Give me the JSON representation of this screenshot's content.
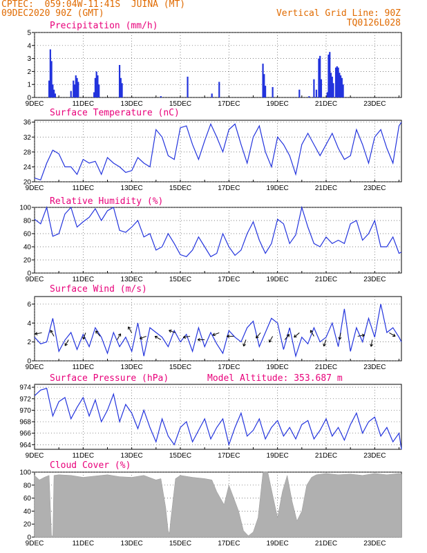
{
  "header": {
    "line1": "CPTEC:  059:04W-11:41S  JUINA (MT)",
    "line2": "09DEC2020 90Z (GMT)",
    "grid_note": "Vertical Grid Line: 90Z",
    "code": "TQ0126L028"
  },
  "colors": {
    "line": "#2233dd",
    "bar": "#2233dd",
    "cloud": "#b0b0b0",
    "title": "#e8007a",
    "header": "#e06a00"
  },
  "x_labels": [
    "9DEC",
    "11DEC",
    "13DEC",
    "15DEC",
    "17DEC",
    "19DEC",
    "21DEC",
    "23DEC"
  ],
  "chart_data": [
    {
      "id": "precip",
      "type": "bar",
      "title": "Precipitation (mm/h)",
      "ylim": [
        0,
        5
      ],
      "yticks": [
        0,
        1,
        2,
        3,
        4,
        5
      ],
      "xlim_days": [
        9,
        24.1
      ],
      "x": [
        9.6,
        9.65,
        9.7,
        9.75,
        9.8,
        9.85,
        10.5,
        10.6,
        10.65,
        10.7,
        10.75,
        10.8,
        11.45,
        11.5,
        11.55,
        11.6,
        11.65,
        12.5,
        12.55,
        12.6,
        14.2,
        15.3,
        16.3,
        16.6,
        18.4,
        18.45,
        18.5,
        18.8,
        19.9,
        20.3,
        20.5,
        20.6,
        20.7,
        20.75,
        20.8,
        21.05,
        21.1,
        21.15,
        21.2,
        21.25,
        21.3,
        21.4,
        21.45,
        21.5,
        21.55,
        21.6,
        21.65,
        21.7
      ],
      "values": [
        1.3,
        3.7,
        2.8,
        1.0,
        0.6,
        0.3,
        0.5,
        1.3,
        1.0,
        1.7,
        1.5,
        1.2,
        0.4,
        1.5,
        2.0,
        1.7,
        1.0,
        2.5,
        1.5,
        1.1,
        0.1,
        1.6,
        0.3,
        1.2,
        2.6,
        1.8,
        0.9,
        0.8,
        0.6,
        0.1,
        1.4,
        0.6,
        3.0,
        3.2,
        1.4,
        0.4,
        3.3,
        3.5,
        1.9,
        1.6,
        1.1,
        2.3,
        2.4,
        2.3,
        1.9,
        1.7,
        1.5,
        1.0
      ]
    },
    {
      "id": "temp",
      "type": "line",
      "title": "Surface Temperature (nC)",
      "ylim": [
        20,
        36.5
      ],
      "yticks": [
        20,
        24,
        28,
        32,
        36
      ],
      "xlim_days": [
        9,
        24.1
      ],
      "x": [
        9.0,
        9.25,
        9.5,
        9.75,
        10.0,
        10.25,
        10.5,
        10.75,
        11.0,
        11.25,
        11.5,
        11.75,
        12.0,
        12.25,
        12.5,
        12.75,
        13.0,
        13.25,
        13.5,
        13.75,
        14.0,
        14.25,
        14.5,
        14.75,
        15.0,
        15.25,
        15.5,
        15.75,
        16.0,
        16.25,
        16.5,
        16.75,
        17.0,
        17.25,
        17.5,
        17.75,
        18.0,
        18.25,
        18.5,
        18.75,
        19.0,
        19.25,
        19.5,
        19.75,
        20.0,
        20.25,
        20.5,
        20.75,
        21.0,
        21.25,
        21.5,
        21.75,
        22.0,
        22.25,
        22.5,
        22.75,
        23.0,
        23.25,
        23.5,
        23.75,
        24.0,
        24.1
      ],
      "values": [
        21,
        20.5,
        25,
        28.5,
        27.5,
        24,
        24,
        22,
        26,
        25,
        25.5,
        22,
        26.5,
        25,
        24,
        22.5,
        23,
        26.5,
        25,
        24,
        34,
        32,
        27,
        26,
        34.5,
        35,
        30,
        26,
        31,
        35.5,
        32,
        28,
        34,
        35.5,
        30,
        25,
        32,
        35,
        28,
        24,
        32,
        30,
        27,
        22,
        30,
        33,
        30,
        27,
        30,
        33,
        29,
        26,
        27,
        34,
        30,
        25,
        32,
        34,
        29,
        25,
        35,
        36
      ]
    },
    {
      "id": "rh",
      "type": "line",
      "title": "Relative Humidity (%)",
      "ylim": [
        0,
        100
      ],
      "yticks": [
        0,
        20,
        40,
        60,
        80,
        100
      ],
      "xlim_days": [
        9,
        24.1
      ],
      "x": [
        9.0,
        9.25,
        9.5,
        9.75,
        10.0,
        10.25,
        10.5,
        10.75,
        11.0,
        11.25,
        11.5,
        11.75,
        12.0,
        12.25,
        12.5,
        12.75,
        13.0,
        13.25,
        13.5,
        13.75,
        14.0,
        14.25,
        14.5,
        14.75,
        15.0,
        15.25,
        15.5,
        15.75,
        16.0,
        16.25,
        16.5,
        16.75,
        17.0,
        17.25,
        17.5,
        17.75,
        18.0,
        18.25,
        18.5,
        18.75,
        19.0,
        19.25,
        19.5,
        19.75,
        20.0,
        20.25,
        20.5,
        20.75,
        21.0,
        21.25,
        21.5,
        21.75,
        22.0,
        22.25,
        22.5,
        22.75,
        23.0,
        23.25,
        23.5,
        23.75,
        24.0,
        24.1
      ],
      "values": [
        82,
        75,
        100,
        56,
        60,
        90,
        100,
        70,
        78,
        85,
        98,
        80,
        95,
        100,
        65,
        62,
        70,
        80,
        55,
        60,
        35,
        40,
        60,
        45,
        28,
        25,
        35,
        55,
        40,
        25,
        30,
        60,
        40,
        27,
        35,
        60,
        78,
        50,
        30,
        45,
        82,
        75,
        45,
        58,
        100,
        70,
        45,
        40,
        55,
        45,
        50,
        45,
        75,
        80,
        50,
        60,
        80,
        40,
        40,
        55,
        30,
        32
      ]
    },
    {
      "id": "wind",
      "type": "line",
      "title": "Surface Wind (m/s)",
      "ylim": [
        0,
        6.8
      ],
      "yticks": [
        0,
        2,
        4,
        6
      ],
      "xlim_days": [
        9,
        24.1
      ],
      "x": [
        9.0,
        9.25,
        9.5,
        9.75,
        10.0,
        10.25,
        10.5,
        10.75,
        11.0,
        11.25,
        11.5,
        11.75,
        12.0,
        12.25,
        12.5,
        12.75,
        13.0,
        13.25,
        13.5,
        13.75,
        14.0,
        14.25,
        14.5,
        14.75,
        15.0,
        15.25,
        15.5,
        15.75,
        16.0,
        16.25,
        16.5,
        16.75,
        17.0,
        17.25,
        17.5,
        17.75,
        18.0,
        18.25,
        18.5,
        18.75,
        19.0,
        19.25,
        19.5,
        19.75,
        20.0,
        20.25,
        20.5,
        20.75,
        21.0,
        21.25,
        21.5,
        21.75,
        22.0,
        22.25,
        22.5,
        22.75,
        23.0,
        23.25,
        23.5,
        23.75,
        24.0,
        24.1
      ],
      "values": [
        2.5,
        1.8,
        2.0,
        4.5,
        1.0,
        2.2,
        3.0,
        1.2,
        2.8,
        1.5,
        3.5,
        2.5,
        0.8,
        3.0,
        1.5,
        2.5,
        1.0,
        4.0,
        0.5,
        3.5,
        3.0,
        2.5,
        1.5,
        3.2,
        2.0,
        2.8,
        1.0,
        3.5,
        1.5,
        3.0,
        1.8,
        0.8,
        3.2,
        2.5,
        2.0,
        3.5,
        4.2,
        1.5,
        3.0,
        4.5,
        4.0,
        1.2,
        3.5,
        0.5,
        2.5,
        1.8,
        3.5,
        2.0,
        2.5,
        4.0,
        1.5,
        5.5,
        1.0,
        3.5,
        2.0,
        4.5,
        2.5,
        6.0,
        3.0,
        3.5,
        2.5,
        2.0
      ],
      "arrows": [
        {
          "x": 9.3,
          "dir": 260
        },
        {
          "x": 9.8,
          "dir": 330
        },
        {
          "x": 10.4,
          "dir": 210
        },
        {
          "x": 11.1,
          "dir": 200
        },
        {
          "x": 11.7,
          "dir": 320
        },
        {
          "x": 12.4,
          "dir": 30
        },
        {
          "x": 13.0,
          "dir": 330
        },
        {
          "x": 13.6,
          "dir": 250
        },
        {
          "x": 14.2,
          "dir": 300
        },
        {
          "x": 14.8,
          "dir": 290
        },
        {
          "x": 15.4,
          "dir": 260
        },
        {
          "x": 16.0,
          "dir": 270
        },
        {
          "x": 16.6,
          "dir": 250
        },
        {
          "x": 17.2,
          "dir": 270
        },
        {
          "x": 17.7,
          "dir": 200
        },
        {
          "x": 18.3,
          "dir": 220
        },
        {
          "x": 18.8,
          "dir": 210
        },
        {
          "x": 19.3,
          "dir": 40
        },
        {
          "x": 19.9,
          "dir": 230
        },
        {
          "x": 20.5,
          "dir": 330
        },
        {
          "x": 21.0,
          "dir": 200
        },
        {
          "x": 21.6,
          "dir": 190
        },
        {
          "x": 22.3,
          "dir": 80
        },
        {
          "x": 22.9,
          "dir": 190
        },
        {
          "x": 23.6,
          "dir": 120
        }
      ]
    },
    {
      "id": "press",
      "type": "line",
      "title": "Surface Pressure (hPa)",
      "subtitle": "Model Altitude: 353.687 m",
      "ylim": [
        963.2,
        974.5
      ],
      "yticks": [
        964,
        966,
        968,
        970,
        972,
        974
      ],
      "xlim_days": [
        9,
        24.1
      ],
      "x": [
        9.0,
        9.25,
        9.5,
        9.75,
        10.0,
        10.25,
        10.5,
        10.75,
        11.0,
        11.25,
        11.5,
        11.75,
        12.0,
        12.25,
        12.5,
        12.75,
        13.0,
        13.25,
        13.5,
        13.75,
        14.0,
        14.25,
        14.5,
        14.75,
        15.0,
        15.25,
        15.5,
        15.75,
        16.0,
        16.25,
        16.5,
        16.75,
        17.0,
        17.25,
        17.5,
        17.75,
        18.0,
        18.25,
        18.5,
        18.75,
        19.0,
        19.25,
        19.5,
        19.75,
        20.0,
        20.25,
        20.5,
        20.75,
        21.0,
        21.25,
        21.5,
        21.75,
        22.0,
        22.25,
        22.5,
        22.75,
        23.0,
        23.25,
        23.5,
        23.75,
        24.0,
        24.1
      ],
      "values": [
        972.5,
        973.5,
        973.8,
        969,
        971.5,
        972.2,
        968.5,
        970.5,
        972.2,
        969,
        971.8,
        968,
        970,
        972.8,
        968,
        971,
        969.5,
        966.8,
        970,
        967,
        964.5,
        968.5,
        965.5,
        964,
        967,
        968,
        964.5,
        966.5,
        968.5,
        965,
        967,
        968.5,
        964,
        967,
        969.5,
        965.5,
        966.5,
        968.5,
        965,
        967,
        968.2,
        965.5,
        967,
        965,
        967.5,
        968.2,
        965,
        966.5,
        968.5,
        965.5,
        967,
        964.8,
        967.5,
        969.5,
        966,
        968,
        968.8,
        965.5,
        967,
        964.5,
        966,
        963.2
      ]
    },
    {
      "id": "cloud",
      "type": "area",
      "title": "Cloud Cover (%)",
      "ylim": [
        0,
        100
      ],
      "yticks": [
        0,
        20,
        40,
        60,
        80,
        100
      ],
      "xlim_days": [
        9,
        24.1
      ],
      "x": [
        9.0,
        9.2,
        9.4,
        9.6,
        9.7,
        9.75,
        9.8,
        10.0,
        10.5,
        11.0,
        11.5,
        12.0,
        12.5,
        13.0,
        13.5,
        14.0,
        14.2,
        14.4,
        14.5,
        14.55,
        14.6,
        14.8,
        15.0,
        15.5,
        16.0,
        16.3,
        16.5,
        16.8,
        17.0,
        17.2,
        17.4,
        17.6,
        17.8,
        18.0,
        18.2,
        18.4,
        18.6,
        18.8,
        19.0,
        19.2,
        19.4,
        19.6,
        19.8,
        20.0,
        20.2,
        20.4,
        20.6,
        21.0,
        21.5,
        22.0,
        22.5,
        23.0,
        23.5,
        24.0,
        24.1
      ],
      "values": [
        95,
        88,
        92,
        95,
        2,
        2,
        95,
        96,
        95,
        92,
        94,
        96,
        93,
        92,
        95,
        88,
        90,
        45,
        10,
        5,
        25,
        90,
        95,
        92,
        90,
        88,
        70,
        50,
        80,
        60,
        40,
        10,
        2,
        8,
        30,
        100,
        100,
        65,
        30,
        70,
        95,
        55,
        25,
        40,
        80,
        92,
        96,
        98,
        96,
        97,
        95,
        98,
        96,
        98,
        97
      ]
    }
  ]
}
